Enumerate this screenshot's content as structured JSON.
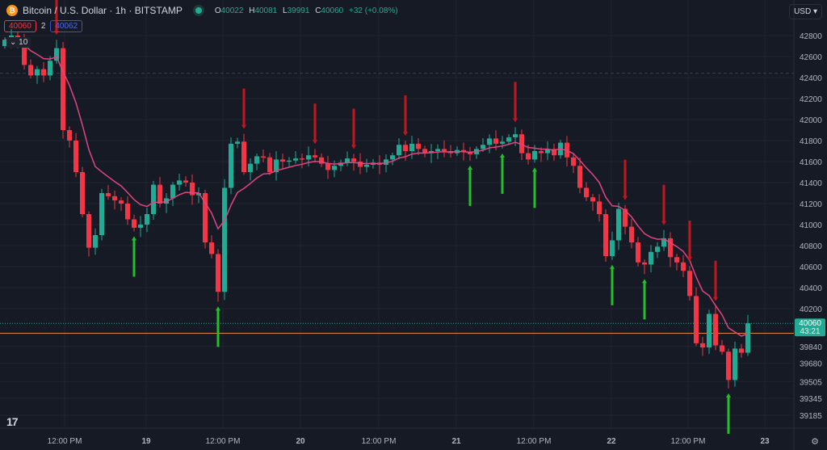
{
  "header": {
    "symbol_title": "Bitcoin / U.S. Dollar · 1h · BITSTAMP",
    "coin_icon": "bitcoin-icon",
    "ohlc": {
      "o_label": "O",
      "o": "40022",
      "h_label": "H",
      "h": "40081",
      "l_label": "L",
      "l": "39991",
      "c_label": "C",
      "c": "40060",
      "change": "+32 (+0.08%)"
    },
    "bid": "40060",
    "spread": "2",
    "ask": "40062",
    "indicator_value": "10",
    "currency": "USD"
  },
  "colors": {
    "up": "#22ab94",
    "down": "#f23645",
    "line": "#e0467f",
    "buy_arrow": "#22c02a",
    "sell_arrow": "#c0161d",
    "bg": "#161a25"
  },
  "chart_data": {
    "type": "candlestick",
    "title": "Bitcoin / U.S. Dollar · 1h · BITSTAMP",
    "ylim": [
      39100,
      42950
    ],
    "y_ticks": [
      42800,
      42600,
      42400,
      42200,
      42000,
      41800,
      41600,
      41400,
      41200,
      41000,
      40800,
      40600,
      40400,
      40200,
      39840,
      39680,
      39505,
      39345,
      39185
    ],
    "x_ticks": [
      "12:00 PM",
      "19",
      "12:00 PM",
      "20",
      "12:00 PM",
      "21",
      "12:00 PM",
      "22",
      "12:00 PM",
      "23"
    ],
    "first_open": 42700,
    "closes": [
      42760,
      42800,
      42740,
      42520,
      42420,
      42480,
      42420,
      42560,
      42680,
      41900,
      41800,
      41500,
      41100,
      40780,
      40900,
      41300,
      41270,
      41230,
      41200,
      41050,
      40970,
      41000,
      41100,
      41380,
      41200,
      41250,
      41380,
      41420,
      41400,
      41280,
      41300,
      40830,
      40720,
      40360,
      41350,
      41770,
      41790,
      41500,
      41580,
      41650,
      41640,
      41500,
      41620,
      41600,
      41610,
      41630,
      41620,
      41660,
      41640,
      41580,
      41520,
      41560,
      41590,
      41630,
      41600,
      41550,
      41570,
      41590,
      41570,
      41620,
      41660,
      41760,
      41700,
      41770,
      41720,
      41680,
      41700,
      41720,
      41700,
      41680,
      41710,
      41690,
      41670,
      41720,
      41760,
      41820,
      41770,
      41790,
      41830,
      41860,
      41680,
      41620,
      41700,
      41680,
      41720,
      41660,
      41780,
      41640,
      41560,
      41350,
      41260,
      41220,
      41100,
      40700,
      40850,
      41150,
      40980,
      40830,
      40640,
      40620,
      40740,
      40790,
      40870,
      40690,
      40640,
      40560,
      40320,
      39870,
      39830,
      40150,
      39850,
      39790,
      39520,
      39820,
      39780,
      40060
    ],
    "sell_signals": [
      8,
      37,
      48,
      54,
      62,
      79,
      96,
      102,
      106,
      110
    ],
    "buy_signals": [
      20,
      33,
      72,
      77,
      82,
      94,
      99,
      112
    ],
    "last_price": "40060",
    "countdown": "43:21",
    "horizontal_line": 39965,
    "dashed_line": 42440,
    "grid": true
  },
  "footer": {
    "logo": "TV",
    "settings_icon": "gear-icon"
  }
}
